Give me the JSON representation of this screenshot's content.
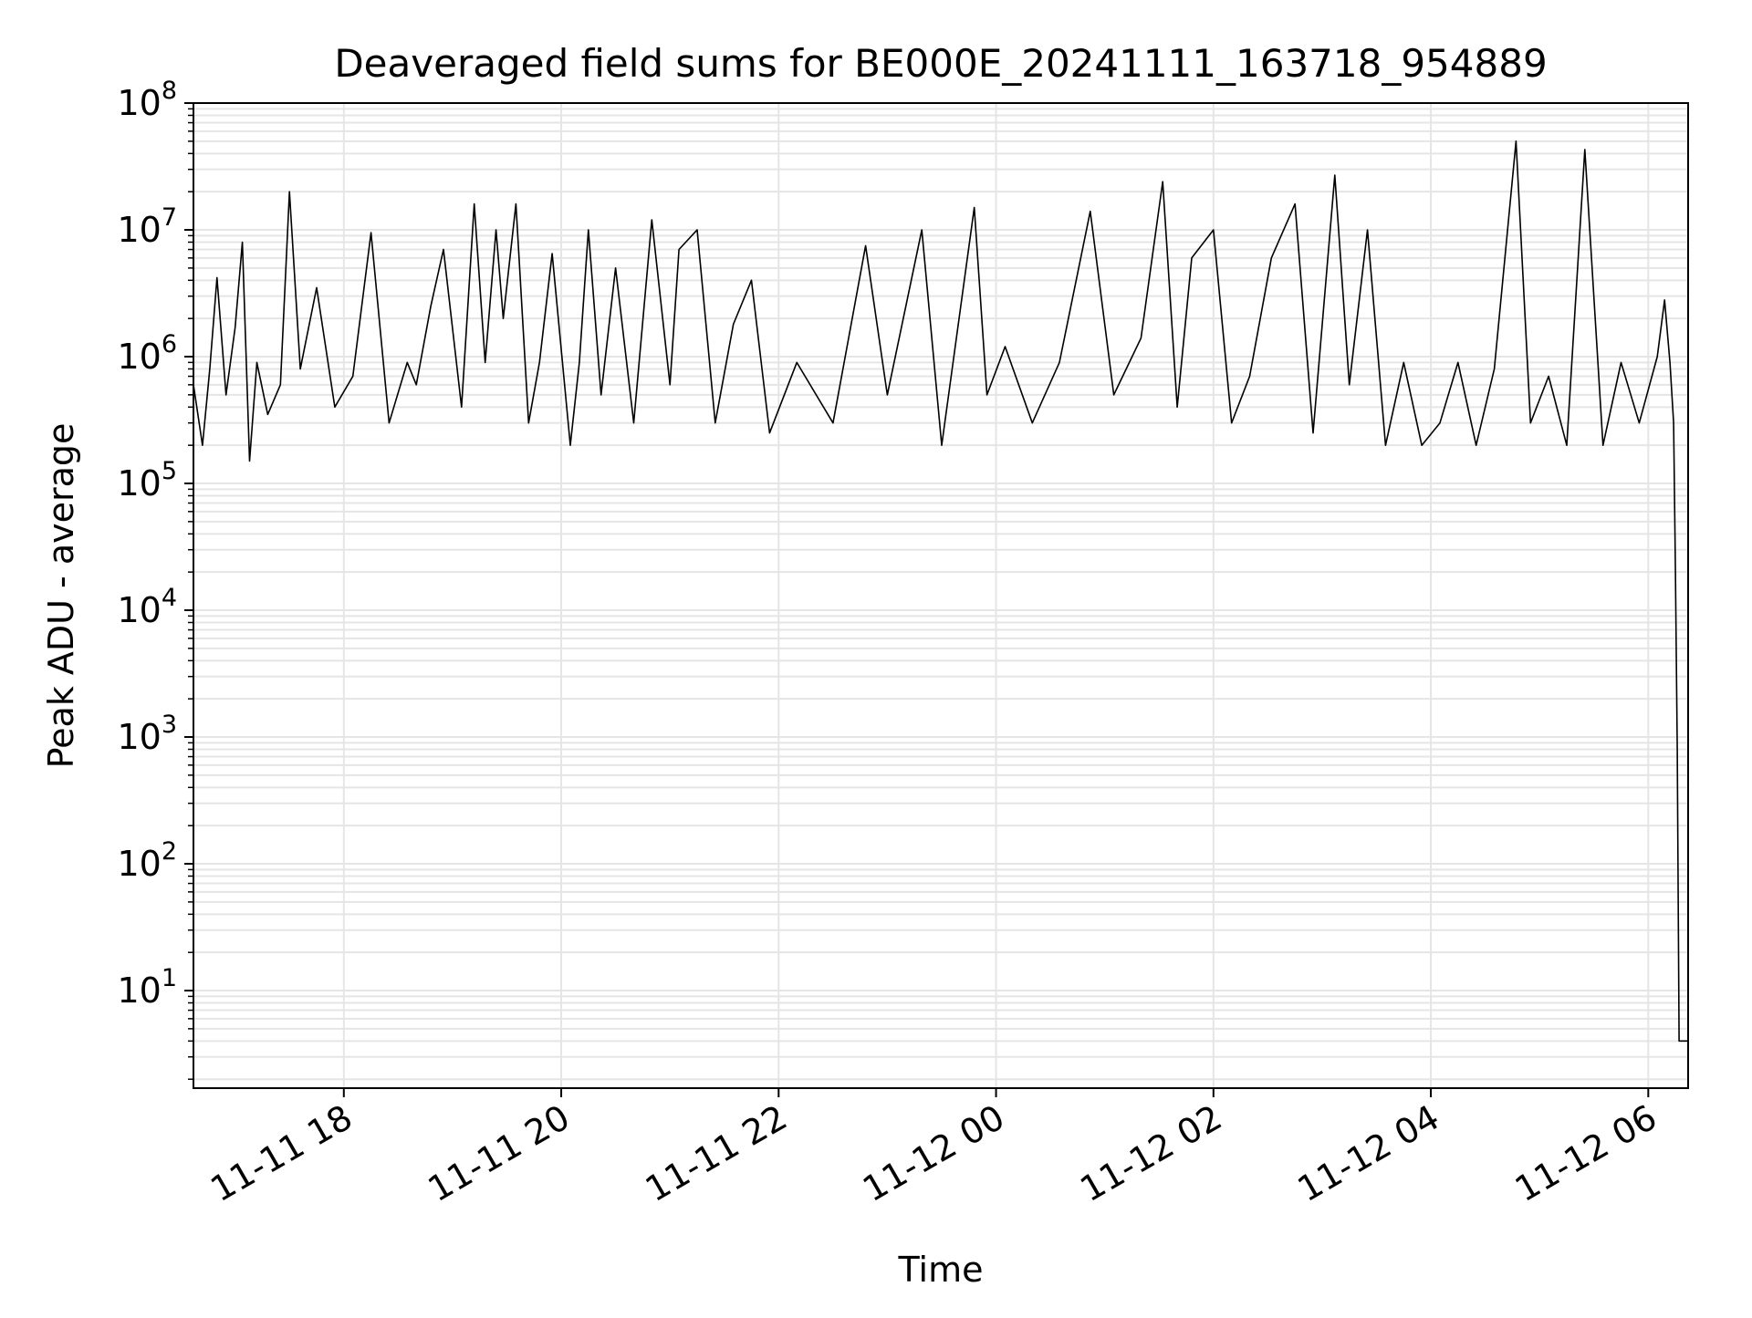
{
  "chart_data": {
    "type": "line",
    "title": "Deaveraged field sums for BE000E_20241111_163718_954889",
    "xlabel": "Time",
    "ylabel": "Peak ADU - average",
    "yscale": "log",
    "ylim": [
      1.7,
      100000000
    ],
    "xlim": [
      "2024-11-11 16:37",
      "2024-11-12 06:22"
    ],
    "x_ticks": [
      {
        "label": "11-11 18",
        "value": "2024-11-11 18:00"
      },
      {
        "label": "11-11 20",
        "value": "2024-11-11 20:00"
      },
      {
        "label": "11-11 22",
        "value": "2024-11-11 22:00"
      },
      {
        "label": "11-12 00",
        "value": "2024-11-12 00:00"
      },
      {
        "label": "11-12 02",
        "value": "2024-11-12 02:00"
      },
      {
        "label": "11-12 04",
        "value": "2024-11-12 04:00"
      },
      {
        "label": "11-12 06",
        "value": "2024-11-12 06:00"
      }
    ],
    "y_ticks": [
      {
        "base": "10",
        "exp": "1",
        "value": 10
      },
      {
        "base": "10",
        "exp": "2",
        "value": 100
      },
      {
        "base": "10",
        "exp": "3",
        "value": 1000
      },
      {
        "base": "10",
        "exp": "4",
        "value": 10000
      },
      {
        "base": "10",
        "exp": "5",
        "value": 100000
      },
      {
        "base": "10",
        "exp": "6",
        "value": 1000000
      },
      {
        "base": "10",
        "exp": "7",
        "value": 10000000
      },
      {
        "base": "10",
        "exp": "8",
        "value": 100000000
      }
    ],
    "grid": true,
    "line_color": "#000000",
    "grid_color": "#e5e5e5",
    "series": [
      {
        "x": [
          "2024-11-11 16:37",
          "2024-11-11 16:42",
          "2024-11-11 16:46",
          "2024-11-11 16:50",
          "2024-11-11 16:55",
          "2024-11-11 17:00",
          "2024-11-11 17:04",
          "2024-11-11 17:08",
          "2024-11-11 17:12",
          "2024-11-11 17:18",
          "2024-11-11 17:25",
          "2024-11-11 17:30",
          "2024-11-11 17:36",
          "2024-11-11 17:45",
          "2024-11-11 17:55",
          "2024-11-11 18:05",
          "2024-11-11 18:15",
          "2024-11-11 18:25",
          "2024-11-11 18:35",
          "2024-11-11 18:40",
          "2024-11-11 18:48",
          "2024-11-11 18:55",
          "2024-11-11 19:05",
          "2024-11-11 19:12",
          "2024-11-11 19:18",
          "2024-11-11 19:24",
          "2024-11-11 19:28",
          "2024-11-11 19:35",
          "2024-11-11 19:42",
          "2024-11-11 19:48",
          "2024-11-11 19:55",
          "2024-11-11 20:05",
          "2024-11-11 20:10",
          "2024-11-11 20:15",
          "2024-11-11 20:22",
          "2024-11-11 20:30",
          "2024-11-11 20:40",
          "2024-11-11 20:50",
          "2024-11-11 21:00",
          "2024-11-11 21:05",
          "2024-11-11 21:15",
          "2024-11-11 21:25",
          "2024-11-11 21:35",
          "2024-11-11 21:45",
          "2024-11-11 21:55",
          "2024-11-11 22:10",
          "2024-11-11 22:30",
          "2024-11-11 22:48",
          "2024-11-11 23:00",
          "2024-11-11 23:19",
          "2024-11-11 23:30",
          "2024-11-11 23:48",
          "2024-11-11 23:55",
          "2024-11-12 00:05",
          "2024-11-12 00:20",
          "2024-11-12 00:35",
          "2024-11-12 00:52",
          "2024-11-12 01:05",
          "2024-11-12 01:20",
          "2024-11-12 01:32",
          "2024-11-12 01:40",
          "2024-11-12 01:48",
          "2024-11-12 02:00",
          "2024-11-12 02:10",
          "2024-11-12 02:20",
          "2024-11-12 02:32",
          "2024-11-12 02:45",
          "2024-11-12 02:55",
          "2024-11-12 03:07",
          "2024-11-12 03:15",
          "2024-11-12 03:25",
          "2024-11-12 03:35",
          "2024-11-12 03:45",
          "2024-11-12 03:55",
          "2024-11-12 04:05",
          "2024-11-12 04:15",
          "2024-11-12 04:25",
          "2024-11-12 04:35",
          "2024-11-12 04:47",
          "2024-11-12 04:55",
          "2024-11-12 05:05",
          "2024-11-12 05:15",
          "2024-11-12 05:25",
          "2024-11-12 05:35",
          "2024-11-12 05:45",
          "2024-11-12 05:55",
          "2024-11-12 06:05",
          "2024-11-12 06:09",
          "2024-11-12 06:12",
          "2024-11-12 06:14",
          "2024-11-12 06:15",
          "2024-11-12 06:16",
          "2024-11-12 06:17",
          "2024-11-12 06:22"
        ],
        "y": [
          600000,
          200000,
          800000,
          4200000,
          500000,
          1700000,
          8000000,
          150000,
          900000,
          350000,
          600000,
          20000000,
          800000,
          3500000,
          400000,
          700000,
          9500000,
          300000,
          900000,
          600000,
          2500000,
          7000000,
          400000,
          16000000,
          900000,
          10000000,
          2000000,
          16000000,
          300000,
          900000,
          6500000,
          200000,
          900000,
          10000000,
          500000,
          5000000,
          300000,
          12000000,
          600000,
          7000000,
          10000000,
          300000,
          1800000,
          4000000,
          250000,
          900000,
          300000,
          7500000,
          500000,
          10000000,
          200000,
          15000000,
          500000,
          1200000,
          300000,
          900000,
          14000000,
          500000,
          1400000,
          24000000,
          400000,
          6000000,
          10000000,
          300000,
          700000,
          6000000,
          16000000,
          250000,
          27000000,
          600000,
          10000000,
          200000,
          900000,
          200000,
          300000,
          900000,
          200000,
          800000,
          50000000,
          300000,
          700000,
          200000,
          43000000,
          200000,
          900000,
          300000,
          1000000,
          2800000,
          900000,
          300000,
          20000,
          800,
          4,
          4
        ]
      }
    ]
  }
}
